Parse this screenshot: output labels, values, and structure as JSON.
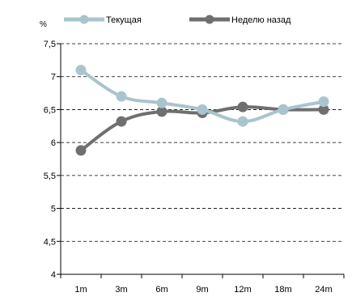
{
  "chart_data": {
    "type": "line",
    "ylabel": "%",
    "categories": [
      "1m",
      "3m",
      "6m",
      "9m",
      "12m",
      "18m",
      "24m"
    ],
    "y_ticks": [
      "4",
      "4,5",
      "5",
      "5,5",
      "6",
      "6,5",
      "7",
      "7,5"
    ],
    "ylim": [
      4,
      7.5
    ],
    "grid": "horizontal dashed",
    "legend_position": "top",
    "series": [
      {
        "name": "Текущая",
        "color": "#a9c4cc",
        "values": [
          7.1,
          6.7,
          6.6,
          6.5,
          6.32,
          6.5,
          6.62
        ]
      },
      {
        "name": "Неделю назад",
        "color": "#6f6f6f",
        "values": [
          5.88,
          6.32,
          6.47,
          6.45,
          6.54,
          6.5,
          6.5
        ]
      }
    ]
  }
}
